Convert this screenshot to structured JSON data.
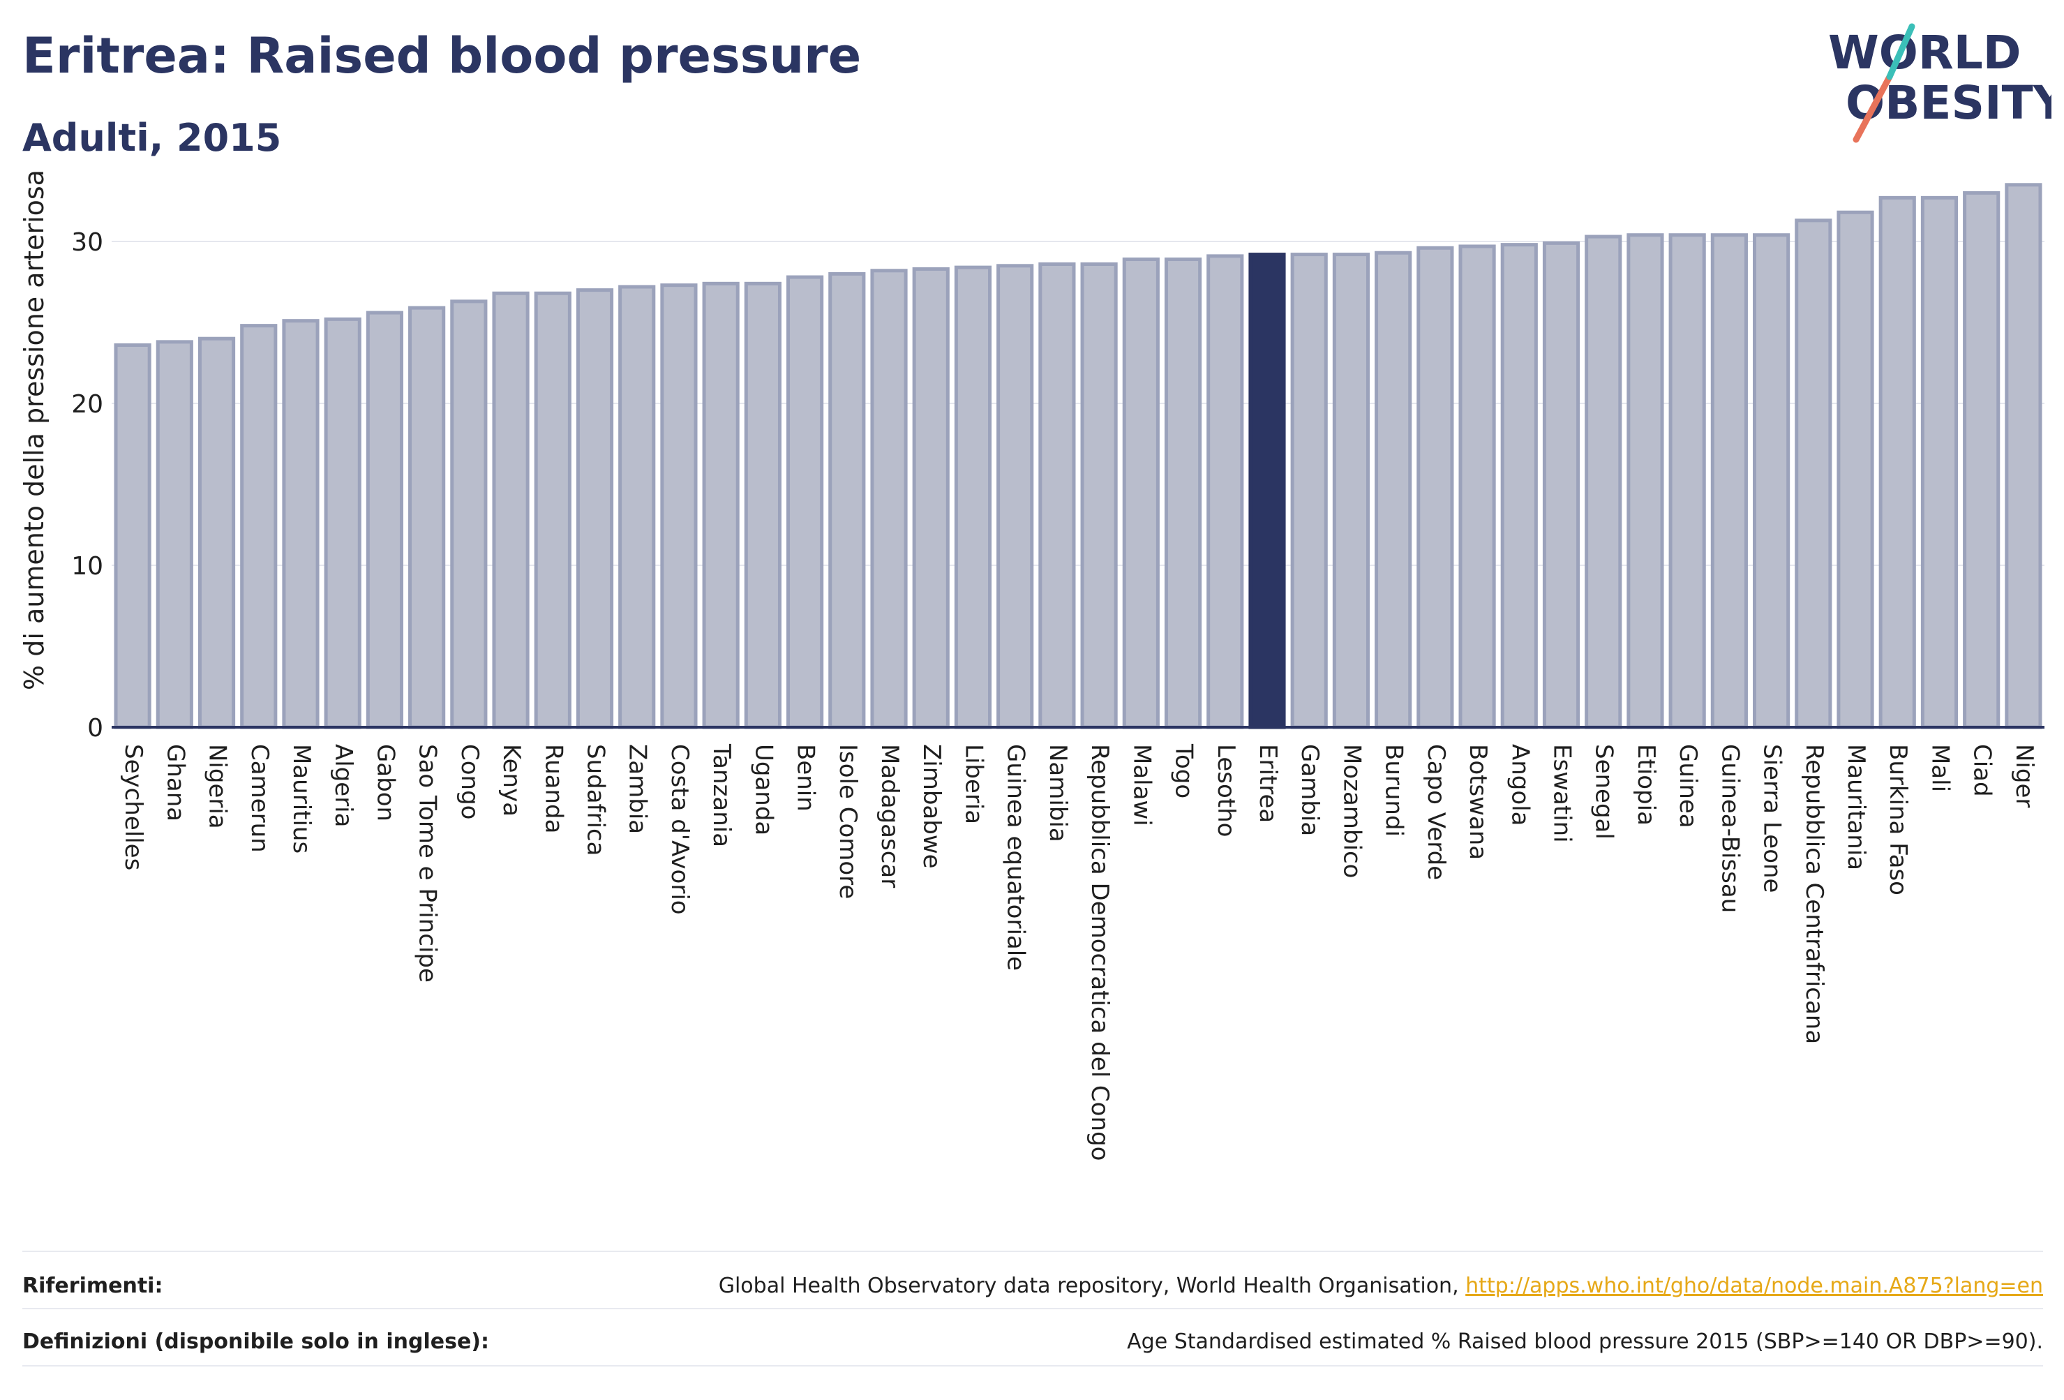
{
  "header": {
    "title": "Eritrea: Raised blood pressure",
    "subtitle": "Adulti, 2015"
  },
  "logo": {
    "line1": "WORLD",
    "line2": "OBESITY",
    "colors": {
      "text": "#2b3562",
      "slash_teal": "#3bbfb8",
      "slash_coral": "#e8735a"
    }
  },
  "footer": {
    "references_label": "Riferimenti:",
    "references_text": "Global Health Observatory data repository, World Health Organisation, ",
    "references_link": "http://apps.who.int/gho/data/node.main.A875?lang=en",
    "definitions_label": "Definizioni (disponibile solo in inglese):",
    "definitions_text": "Age Standardised estimated % Raised blood pressure 2015 (SBP>=140 OR DBP>=90)."
  },
  "chart_data": {
    "type": "bar",
    "title": "Eritrea: Raised blood pressure",
    "subtitle": "Adulti, 2015",
    "ylabel": "% di aumento della pressione arteriosa",
    "xlabel": "",
    "ylim": [
      0,
      35
    ],
    "yticks": [
      0,
      10,
      20,
      30
    ],
    "grid": true,
    "highlight": "Eritrea",
    "colors": {
      "bar": "#b9bdcc",
      "bar_border": "#9ba2bb",
      "highlight": "#2b3562",
      "grid": "#e5e7ee",
      "axis": "#2b3562"
    },
    "categories": [
      "Seychelles",
      "Ghana",
      "Nigeria",
      "Camerun",
      "Mauritius",
      "Algeria",
      "Gabon",
      "Sao Tome e Principe",
      "Congo",
      "Kenya",
      "Ruanda",
      "Sudafrica",
      "Zambia",
      "Costa d'Avorio",
      "Tanzania",
      "Uganda",
      "Benin",
      "Isole Comore",
      "Madagascar",
      "Zimbabwe",
      "Liberia",
      "Guinea equatoriale",
      "Namibia",
      "Repubblica Democratica del Congo",
      "Malawi",
      "Togo",
      "Lesotho",
      "Eritrea",
      "Gambia",
      "Mozambico",
      "Burundi",
      "Capo Verde",
      "Botswana",
      "Angola",
      "Eswatini",
      "Senegal",
      "Etiopia",
      "Guinea",
      "Guinea-Bissau",
      "Sierra Leone",
      "Repubblica Centrafricana",
      "Mauritania",
      "Burkina Faso",
      "Mali",
      "Ciad",
      "Niger"
    ],
    "values": [
      23.6,
      23.8,
      24.0,
      24.8,
      25.1,
      25.2,
      25.6,
      25.9,
      26.3,
      26.8,
      26.8,
      27.0,
      27.2,
      27.3,
      27.4,
      27.4,
      27.8,
      28.0,
      28.2,
      28.3,
      28.4,
      28.5,
      28.6,
      28.6,
      28.9,
      28.9,
      29.1,
      29.2,
      29.2,
      29.2,
      29.3,
      29.6,
      29.7,
      29.8,
      29.9,
      30.3,
      30.4,
      30.4,
      30.4,
      30.4,
      31.3,
      31.8,
      32.7,
      32.7,
      33.0,
      33.5
    ]
  }
}
